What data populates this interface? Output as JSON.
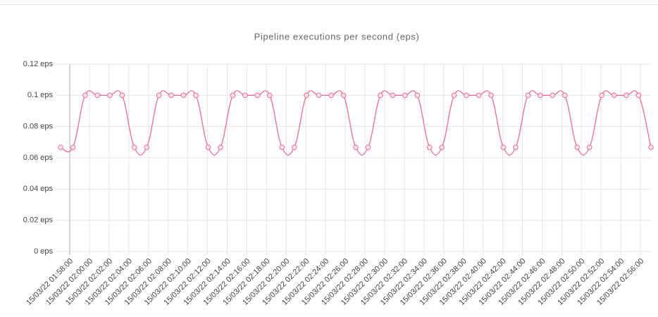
{
  "chart_data": {
    "type": "line",
    "title": "Pipeline executions per second (eps)",
    "x": [
      "15/03/22 01:57:04",
      "15/03/22 01:58:19",
      "15/03/22 01:59:34",
      "15/03/22 02:00:49",
      "15/03/22 02:02:04",
      "15/03/22 02:03:19",
      "15/03/22 02:04:34",
      "15/03/22 02:05:49",
      "15/03/22 02:07:04",
      "15/03/22 02:08:19",
      "15/03/22 02:09:34",
      "15/03/22 02:10:49",
      "15/03/22 02:12:04",
      "15/03/22 02:13:19",
      "15/03/22 02:14:34",
      "15/03/22 02:15:49",
      "15/03/22 02:17:04",
      "15/03/22 02:18:19",
      "15/03/22 02:19:34",
      "15/03/22 02:20:49",
      "15/03/22 02:22:04",
      "15/03/22 02:23:19",
      "15/03/22 02:24:34",
      "15/03/22 02:25:49",
      "15/03/22 02:27:04",
      "15/03/22 02:28:19",
      "15/03/22 02:29:34",
      "15/03/22 02:30:49",
      "15/03/22 02:32:04",
      "15/03/22 02:33:19",
      "15/03/22 02:34:34",
      "15/03/22 02:35:49",
      "15/03/22 02:37:04",
      "15/03/22 02:38:19",
      "15/03/22 02:39:34",
      "15/03/22 02:40:49",
      "15/03/22 02:42:04",
      "15/03/22 02:43:19",
      "15/03/22 02:44:34",
      "15/03/22 02:45:49",
      "15/03/22 02:47:04",
      "15/03/22 02:48:19",
      "15/03/22 02:49:34",
      "15/03/22 02:50:49",
      "15/03/22 02:52:04",
      "15/03/22 02:53:19",
      "15/03/22 02:54:34",
      "15/03/22 02:55:49",
      "15/03/22 02:57:04"
    ],
    "series": [
      {
        "color": "#f06c8e",
        "values": [
          0.0667,
          0.0667,
          0.1,
          0.1,
          0.1,
          0.1,
          0.0667,
          0.0667,
          0.1,
          0.1,
          0.1,
          0.1,
          0.0667,
          0.0667,
          0.1,
          0.1,
          0.1,
          0.1,
          0.0667,
          0.0667,
          0.1,
          0.1,
          0.1,
          0.1,
          0.0667,
          0.0667,
          0.1,
          0.1,
          0.1,
          0.1,
          0.0667,
          0.0667,
          0.1,
          0.1,
          0.1,
          0.1,
          0.0667,
          0.0667,
          0.1,
          0.1,
          0.1,
          0.1,
          0.0667,
          0.0667,
          0.1,
          0.1,
          0.1,
          0.1,
          0.0667
        ]
      }
    ],
    "xlim": [
      "15/03/22 01:57:04",
      "15/03/22 02:57:04"
    ],
    "xticks": [
      "15/03/22 01:58:00",
      "15/03/22 02:00:00",
      "15/03/22 02:02:00",
      "15/03/22 02:04:00",
      "15/03/22 02:06:00",
      "15/03/22 02:08:00",
      "15/03/22 02:10:00",
      "15/03/22 02:12:00",
      "15/03/22 02:14:00",
      "15/03/22 02:16:00",
      "15/03/22 02:18:00",
      "15/03/22 02:20:00",
      "15/03/22 02:22:00",
      "15/03/22 02:24:00",
      "15/03/22 02:26:00",
      "15/03/22 02:28:00",
      "15/03/22 02:30:00",
      "15/03/22 02:32:00",
      "15/03/22 02:34:00",
      "15/03/22 02:36:00",
      "15/03/22 02:38:00",
      "15/03/22 02:40:00",
      "15/03/22 02:42:00",
      "15/03/22 02:44:00",
      "15/03/22 02:46:00",
      "15/03/22 02:48:00",
      "15/03/22 02:50:00",
      "15/03/22 02:52:00",
      "15/03/22 02:54:00",
      "15/03/22 02:56:00"
    ],
    "ylim": [
      0,
      0.12
    ],
    "yticks": [
      {
        "value": 0,
        "label": "0 eps"
      },
      {
        "value": 0.02,
        "label": "0.02 eps"
      },
      {
        "value": 0.04,
        "label": "0.04 eps"
      },
      {
        "value": 0.06,
        "label": "0.06 eps"
      },
      {
        "value": 0.08,
        "label": "0.08 eps"
      },
      {
        "value": 0.1,
        "label": "0.1 eps"
      },
      {
        "value": 0.12,
        "label": "0.12 eps"
      }
    ],
    "grid": true
  }
}
